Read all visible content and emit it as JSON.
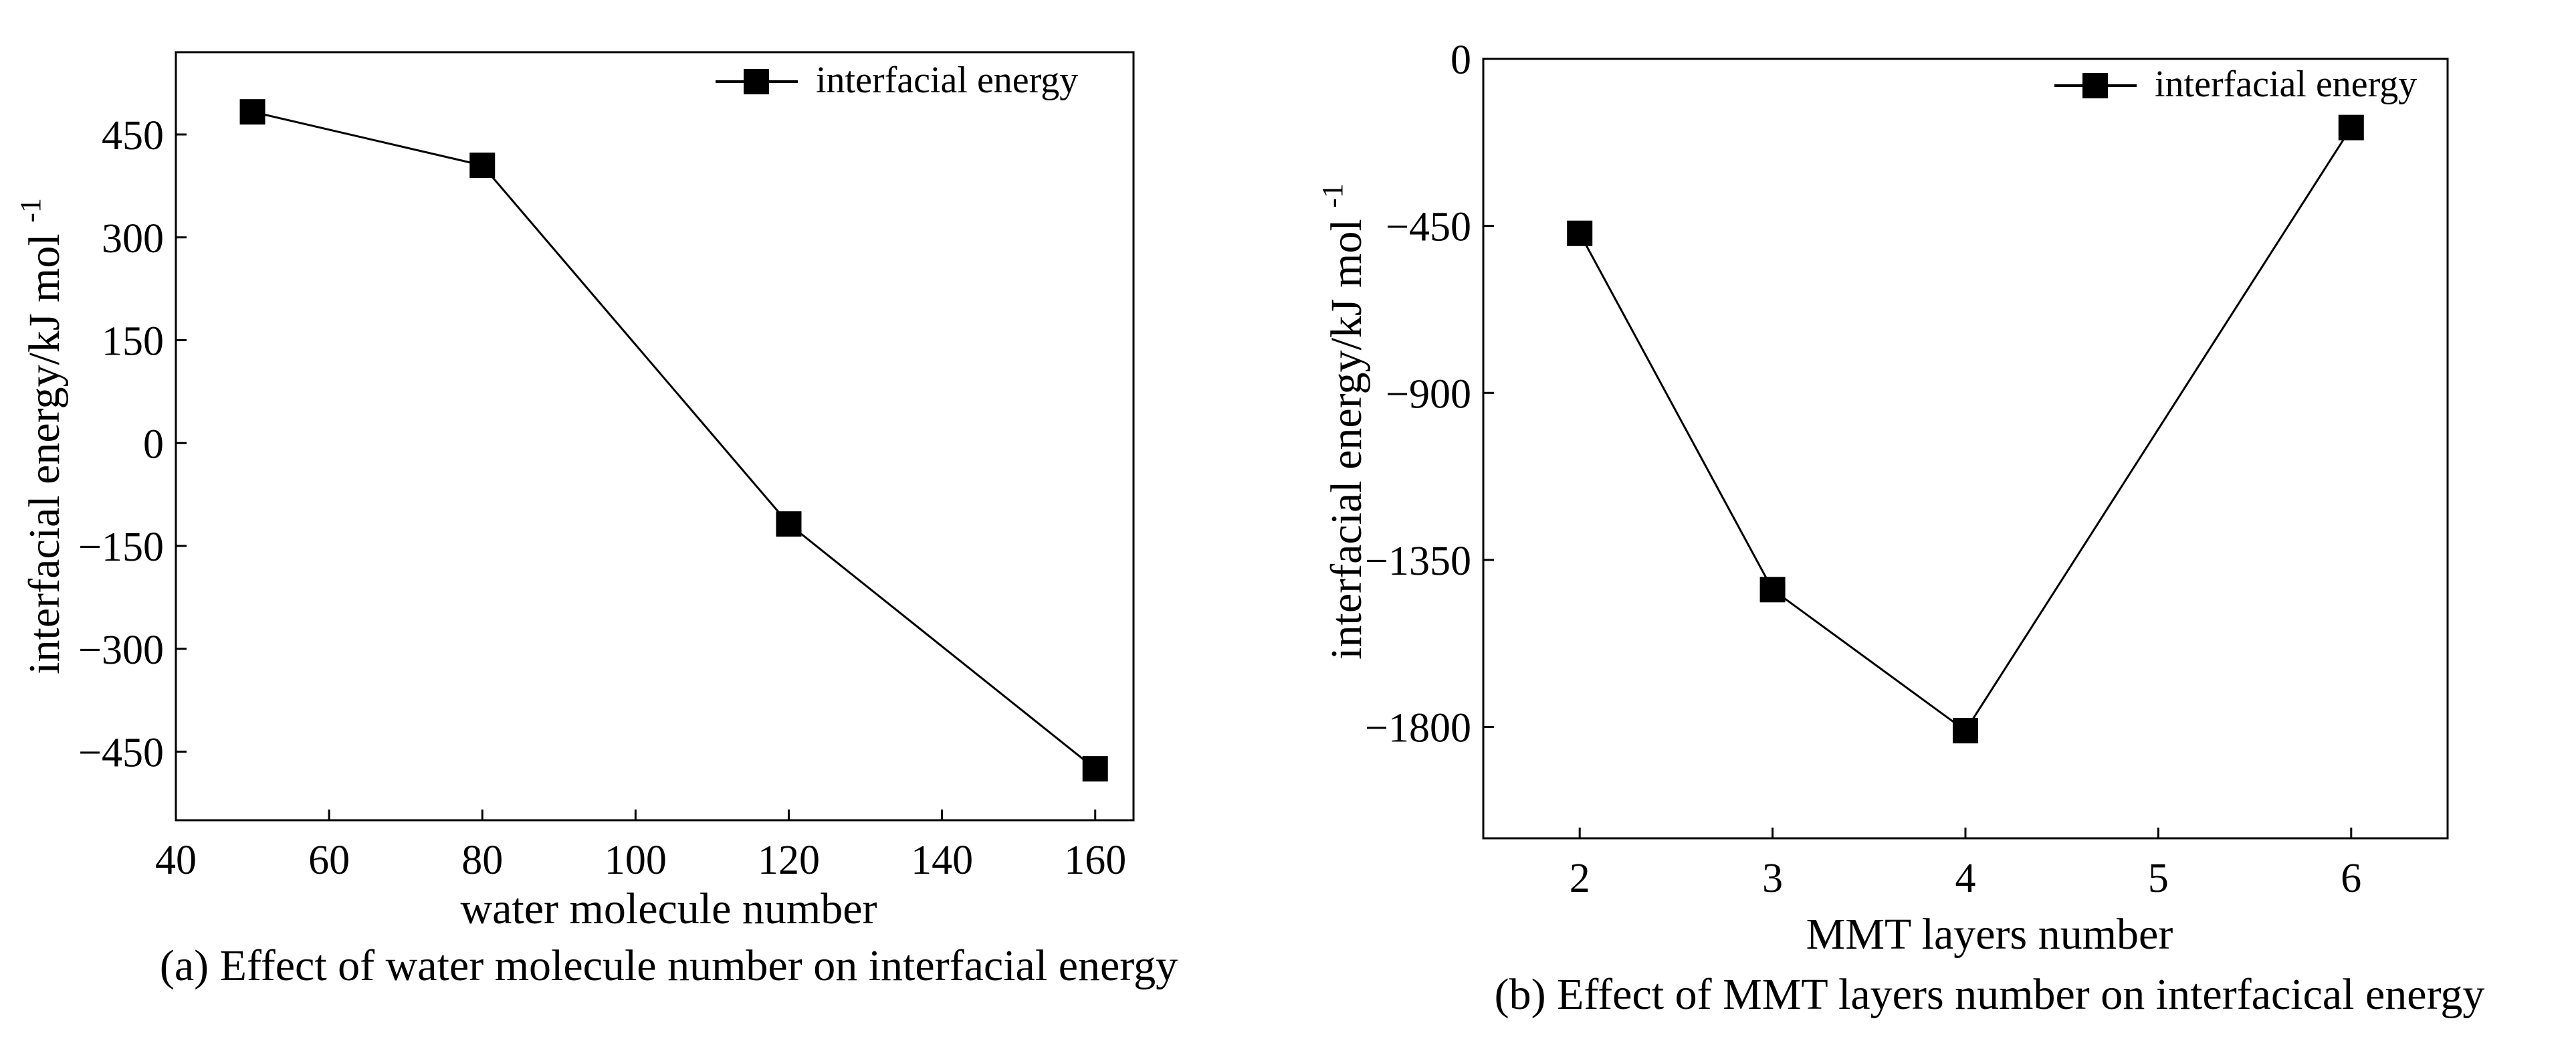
{
  "chart_data": [
    {
      "type": "line",
      "title": "",
      "caption": "(a) Effect of water molecule number on interfacial energy",
      "xlabel": "water molecule number",
      "ylabel_main": "interfacial energy/kJ mol",
      "ylabel_sup": "-1",
      "xlim": [
        40,
        165
      ],
      "ylim": [
        -550,
        570
      ],
      "xticks": [
        40,
        60,
        80,
        100,
        120,
        140,
        160
      ],
      "xtick_labels": [
        "40",
        "60",
        "80",
        "100",
        "120",
        "140",
        "160"
      ],
      "yticks": [
        -450,
        -300,
        -150,
        0,
        150,
        300,
        450
      ],
      "ytick_labels": [
        "−450",
        "−300",
        "−150",
        "0",
        "150",
        "300",
        "450"
      ],
      "grid": false,
      "legend": {
        "position": "top-right",
        "entries": [
          "interfacial energy"
        ]
      },
      "series": [
        {
          "name": "interfacial energy",
          "marker": "square",
          "x": [
            50,
            80,
            120,
            160
          ],
          "values": [
            483,
            405,
            -118,
            -475
          ]
        }
      ]
    },
    {
      "type": "line",
      "title": "",
      "caption": "(b) Effect of MMT layers number on interfacical energy",
      "xlabel": "MMT layers number",
      "ylabel_main": "interfacial energy/kJ mol",
      "ylabel_sup": "-1",
      "xlim": [
        1.5,
        6.5
      ],
      "ylim": [
        -2100,
        0
      ],
      "xticks": [
        2,
        3,
        4,
        5,
        6
      ],
      "xtick_labels": [
        "2",
        "3",
        "4",
        "5",
        "6"
      ],
      "yticks": [
        0,
        -450,
        -900,
        -1350,
        -1800
      ],
      "ytick_labels": [
        "0",
        "−450",
        "−900",
        "−1350",
        "−1800"
      ],
      "grid": false,
      "legend": {
        "position": "top-right",
        "entries": [
          "interfacial energy"
        ]
      },
      "series": [
        {
          "name": "interfacial energy",
          "marker": "square",
          "x": [
            2,
            3,
            4,
            6
          ],
          "values": [
            -470,
            -1430,
            -1810,
            -185
          ]
        }
      ]
    }
  ],
  "colors": {
    "line": "#000000",
    "marker": "#000000",
    "background": "#ffffff"
  }
}
